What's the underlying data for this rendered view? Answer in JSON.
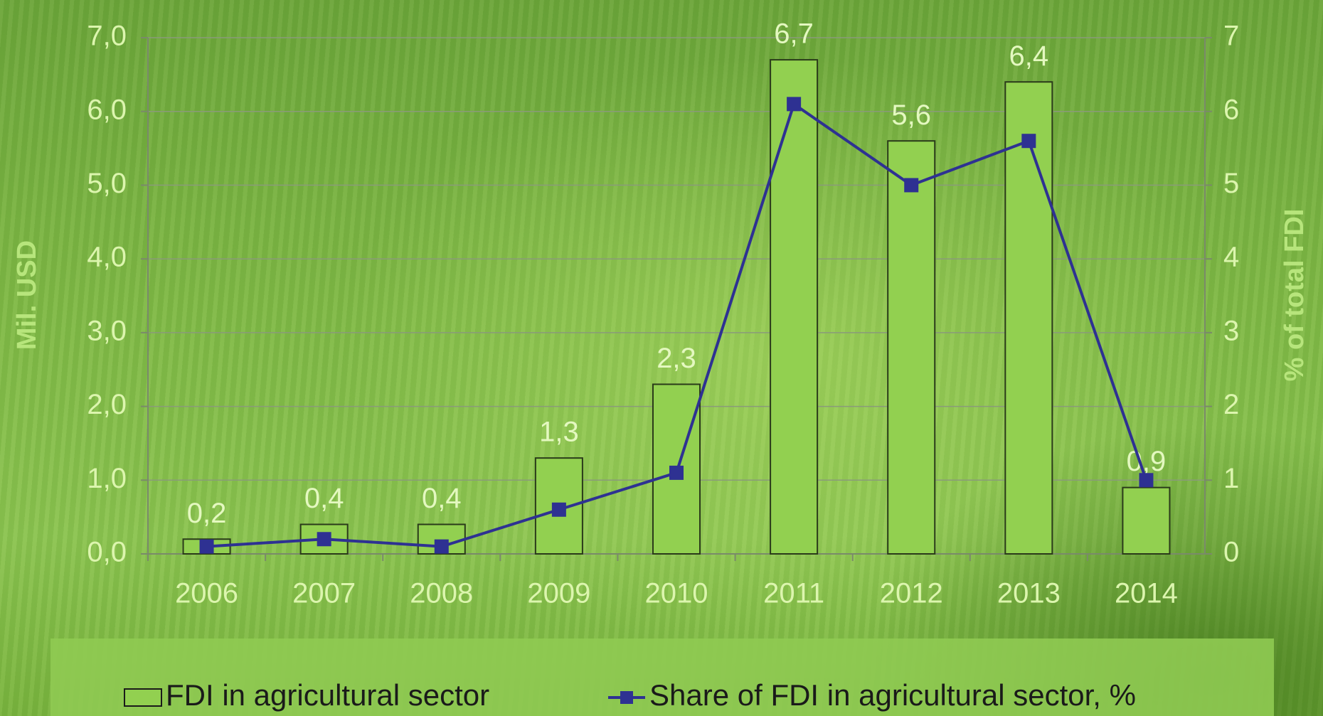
{
  "chart_data": {
    "type": "bar",
    "categories": [
      "2006",
      "2007",
      "2008",
      "2009",
      "2010",
      "2011",
      "2012",
      "2013",
      "2014"
    ],
    "series": [
      {
        "name": "FDI in agricultural sector",
        "type": "bar",
        "color": "#92d050",
        "values": [
          0.2,
          0.4,
          0.4,
          1.3,
          2.3,
          6.7,
          5.6,
          6.4,
          0.9
        ],
        "value_labels": [
          "0,2",
          "0,4",
          "0,4",
          "1,3",
          "2,3",
          "6,7",
          "5,6",
          "6,4",
          "0,9"
        ]
      },
      {
        "name": "Share of FDI in agricultural sector, %",
        "type": "line",
        "axis": "y2",
        "color": "#2e3192",
        "values": [
          0.1,
          0.2,
          0.1,
          0.6,
          1.1,
          6.1,
          5.0,
          5.6,
          1.0
        ]
      }
    ],
    "ylabel": "Mil. USD",
    "y2label": "% of total FDI",
    "ylim": [
      0,
      7
    ],
    "yticks": [
      {
        "value": 0,
        "label": "0,0"
      },
      {
        "value": 1,
        "label": "1,0"
      },
      {
        "value": 2,
        "label": "2,0"
      },
      {
        "value": 3,
        "label": "3,0"
      },
      {
        "value": 4,
        "label": "4,0"
      },
      {
        "value": 5,
        "label": "5,0"
      },
      {
        "value": 6,
        "label": "6,0"
      },
      {
        "value": 7,
        "label": "7,0"
      }
    ],
    "y2lim": [
      0,
      7
    ],
    "y2ticks": [
      0,
      1,
      2,
      3,
      4,
      5,
      6,
      7
    ],
    "grid": true
  }
}
